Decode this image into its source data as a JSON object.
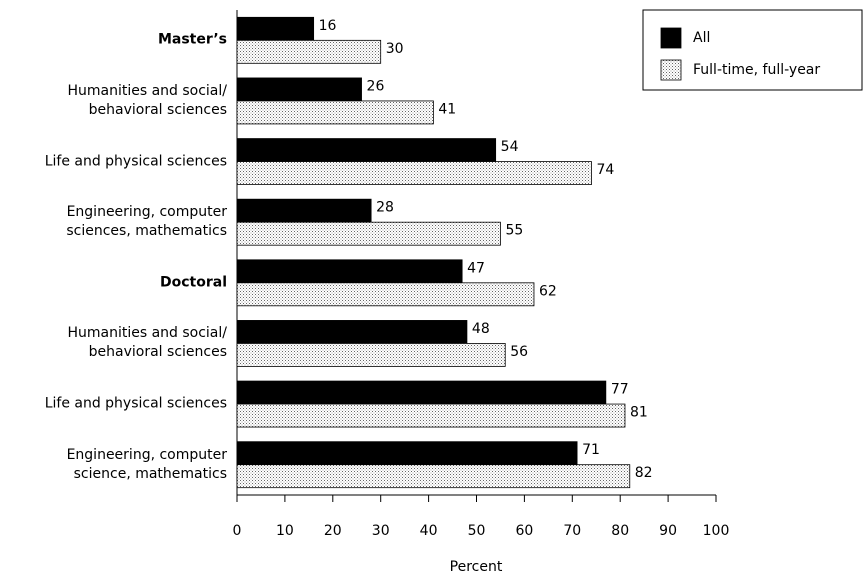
{
  "chart_data": {
    "type": "barh",
    "x_label": "Percent",
    "categories": [
      "Master’s",
      "Humanities and social/\nbehavioral sciences",
      "Life and physical sciences",
      "Engineering, computer\nsciences, mathematics",
      "Doctoral",
      "Humanities and social/\nbehavioral sciences",
      "Life and physical sciences",
      "Engineering, computer\nscience, mathematics"
    ],
    "category_bold": [
      true,
      false,
      false,
      false,
      true,
      false,
      false,
      false
    ],
    "series": [
      {
        "name": "All",
        "color": "#000000",
        "pattern": "solid",
        "values": [
          16,
          26,
          54,
          28,
          47,
          48,
          77,
          71
        ]
      },
      {
        "name": "Full-time, full-year",
        "color": "#ffffff",
        "pattern": "dots",
        "values": [
          30,
          41,
          74,
          55,
          62,
          56,
          81,
          82
        ]
      }
    ],
    "xlim": [
      0,
      100
    ],
    "xticks": [
      0,
      10,
      20,
      30,
      40,
      50,
      60,
      70,
      80,
      90,
      100
    ],
    "legend": "top-right"
  }
}
